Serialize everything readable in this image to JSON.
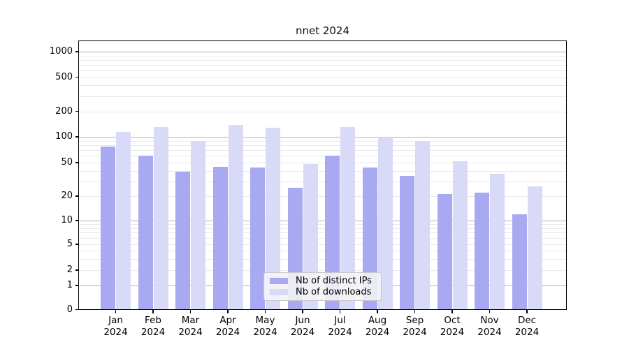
{
  "chart_data": {
    "type": "bar",
    "title": "nnet 2024",
    "categories": [
      "Jan",
      "Feb",
      "Mar",
      "Apr",
      "May",
      "Jun",
      "Jul",
      "Aug",
      "Sep",
      "Oct",
      "Nov",
      "Dec"
    ],
    "x_year_label": "2024",
    "series": [
      {
        "name": "Nb of distinct IPs",
        "color": "#a9a9f1",
        "values": [
          77,
          60,
          39,
          45,
          44,
          25,
          60,
          44,
          35,
          21,
          22,
          12
        ]
      },
      {
        "name": "Nb of downloads",
        "color": "#d9d9f8",
        "values": [
          114,
          131,
          90,
          138,
          127,
          48,
          130,
          96,
          89,
          52,
          37,
          26
        ]
      }
    ],
    "y_axis": {
      "scale": "log",
      "tick_values": [
        0,
        1,
        2,
        5,
        10,
        20,
        50,
        100,
        200,
        500,
        1000
      ],
      "tick_labels": [
        "0",
        "1",
        "2",
        "5",
        "10",
        "20",
        "50",
        "100",
        "200",
        "500",
        "1000"
      ]
    },
    "legend": {
      "position": "inside-bottom-center",
      "labels": [
        "Nb of distinct IPs",
        "Nb of downloads"
      ]
    },
    "grid": true
  },
  "colors": {
    "bar_distinct_ips": "#a9a9f1",
    "bar_downloads": "#d9d9f8",
    "major_grid": "#b3b3b3",
    "minor_grid": "#e9e9e9",
    "axis": "#000000",
    "legend_bg": "#f4f4f6",
    "legend_border": "#c9c9c9",
    "text": "#000000"
  }
}
